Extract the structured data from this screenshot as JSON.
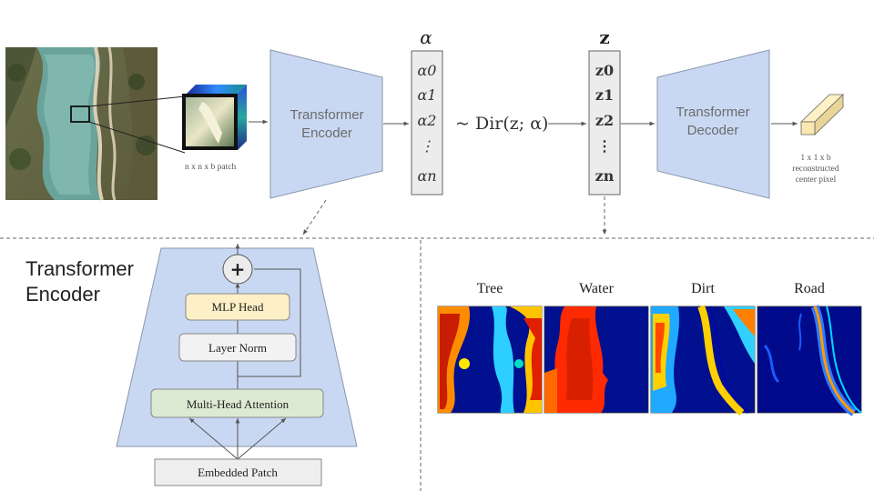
{
  "top_pipeline": {
    "patch_label": "n x n x b patch",
    "encoder_label_line1": "Transformer",
    "encoder_label_line2": "Encoder",
    "alpha_header": "α",
    "alpha_items": [
      "α0",
      "α1",
      "α2",
      "⋮",
      "αn"
    ],
    "dirichlet_label": "~ Dir(z; α)",
    "z_header": "z",
    "z_items": [
      "z0",
      "z1",
      "z2",
      "⋮",
      "zn"
    ],
    "decoder_label_line1": "Transformer",
    "decoder_label_line2": "Decoder",
    "output_line1": "1 x 1 x b",
    "output_line2": "reconstructed",
    "output_line3": "center pixel"
  },
  "encoder_detail": {
    "title_line1": "Transformer",
    "title_line2": "Encoder",
    "add_symbol": "+",
    "mlp_head": "MLP Head",
    "layer_norm": "Layer Norm",
    "attention": "Multi-Head Attention",
    "embedded_patch": "Embedded Patch"
  },
  "abundance_maps": {
    "labels": [
      "Tree",
      "Water",
      "Dirt",
      "Road"
    ]
  },
  "colors": {
    "block_fill": "#c9d8f2",
    "block_stroke": "#7f8fa8",
    "mlp_fill": "#fdefc6",
    "attention_fill": "#dcead3",
    "norm_fill": "#f2f2f2",
    "map_low": "#00007f",
    "map_high": "#b30000"
  }
}
